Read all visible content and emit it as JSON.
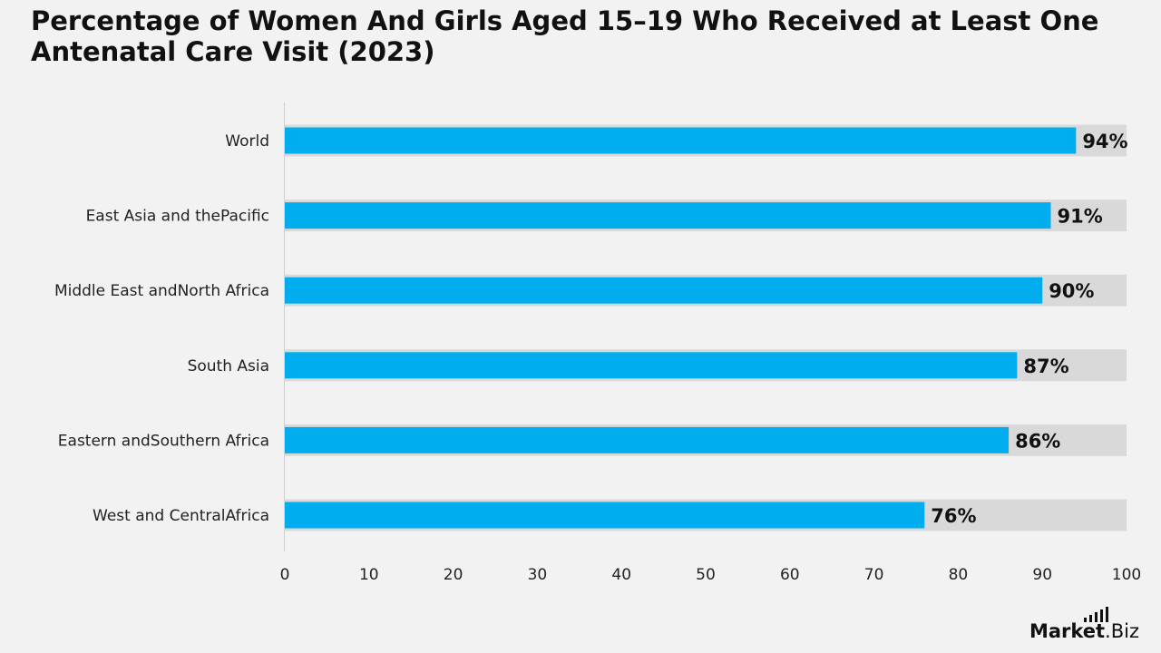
{
  "title": "Percentage of Women And Girls Aged 15–19 Who Received at Least One Antenatal Care Visit (2023)",
  "chart_data": {
    "type": "bar",
    "orientation": "horizontal",
    "title": "Percentage of Women And Girls Aged 15–19 Who Received at Least One Antenatal Care Visit (2023)",
    "xlabel": "",
    "ylabel": "",
    "categories": [
      "World",
      "East Asia and thePacific",
      "Middle East andNorth Africa",
      "South Asia",
      "Eastern andSouthern Africa",
      "West and CentralAfrica"
    ],
    "values": [
      94,
      91,
      90,
      87,
      86,
      76
    ],
    "data_labels": [
      "94%",
      "91%",
      "90%",
      "87%",
      "86%",
      "76%"
    ],
    "xlim": [
      0,
      100
    ],
    "x_ticks": [
      0,
      10,
      20,
      30,
      40,
      50,
      60,
      70,
      80,
      90,
      100
    ],
    "background_bar_value": 100,
    "grid": false,
    "legend": "none",
    "bar_color": "#00aeef",
    "track_color": "#d9d9d9"
  },
  "logo": {
    "text_bold": "Market",
    "text_rest": ".Biz"
  }
}
